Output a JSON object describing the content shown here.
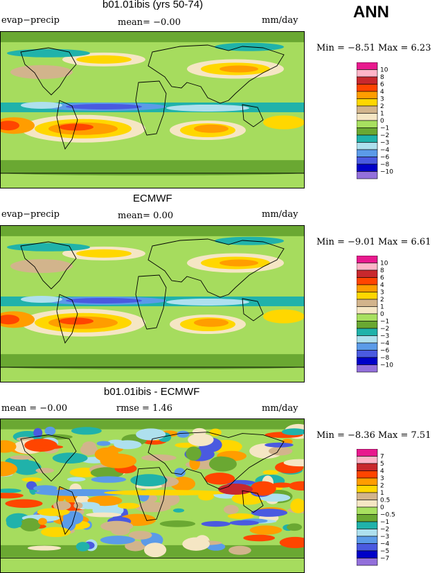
{
  "season": "ANN",
  "panels": [
    {
      "title": "b01.01ibis (yrs 50-74)",
      "left_label": "evap−precip",
      "center_label": "mean=   −0.00",
      "units": "mm/day",
      "minmax": "Min =   −8.51  Max =    6.23"
    },
    {
      "title": "ECMWF",
      "left_label": "evap−precip",
      "center_label": "mean=    0.00",
      "units": "mm/day",
      "minmax": "Min =   −9.01  Max =    6.61"
    },
    {
      "title": "b01.01ibis - ECMWF",
      "left_label": "mean =   −0.00",
      "center_label": "rmse =    1.46",
      "units": "mm/day",
      "minmax": "Min =   −8.36  Max =    7.51"
    }
  ],
  "colors": {
    "levels": [
      "#e8198e",
      "#ffb5c8",
      "#c8282d",
      "#ff4500",
      "#ff9d00",
      "#ffd700",
      "#d2b48c",
      "#f5e6c4",
      "#a8e060",
      "#6aa832",
      "#20b2aa",
      "#aee0ee",
      "#5b9be8",
      "#4a5ae0",
      "#0000c8",
      "#9370db"
    ],
    "ocean": "#a4dc5c"
  },
  "chart_data": [
    {
      "type": "heatmap",
      "title": "b01.01ibis (yrs 50-74)",
      "variable": "evap−precip",
      "units": "mm/day",
      "mean": -0.0,
      "min": -8.51,
      "max": 6.23,
      "contour_levels": [
        10,
        8,
        6,
        4,
        3,
        2,
        1,
        0,
        -1,
        -2,
        -3,
        -4,
        -6,
        -8,
        -10
      ]
    },
    {
      "type": "heatmap",
      "title": "ECMWF",
      "variable": "evap−precip",
      "units": "mm/day",
      "mean": 0.0,
      "min": -9.01,
      "max": 6.61,
      "contour_levels": [
        10,
        8,
        6,
        4,
        3,
        2,
        1,
        0,
        -1,
        -2,
        -3,
        -4,
        -6,
        -8,
        -10
      ]
    },
    {
      "type": "heatmap",
      "title": "b01.01ibis - ECMWF",
      "units": "mm/day",
      "mean": -0.0,
      "rmse": 1.46,
      "min": -8.36,
      "max": 7.51,
      "contour_levels": [
        7,
        5,
        4,
        3,
        2,
        1,
        0.5,
        0,
        -0.5,
        -1,
        -2,
        -3,
        -4,
        -5,
        -7
      ]
    }
  ]
}
